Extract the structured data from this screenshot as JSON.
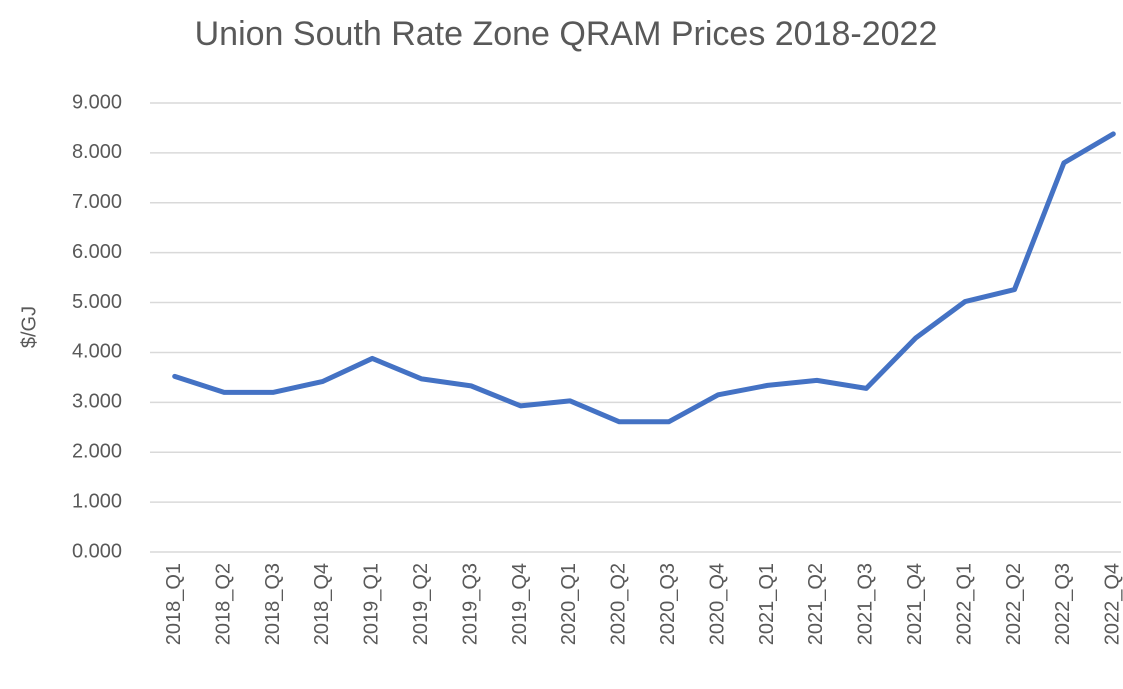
{
  "chart_data": {
    "type": "line",
    "title": "Union South Rate Zone QRAM Prices 2018-2022",
    "y_label": "$/GJ",
    "categories": [
      "2018_Q1",
      "2018_Q2",
      "2018_Q3",
      "2018_Q4",
      "2019_Q1",
      "2019_Q2",
      "2019_Q3",
      "2019_Q4",
      "2020_Q1",
      "2020_Q2",
      "2020_Q3",
      "2020_Q4",
      "2021_Q1",
      "2021_Q2",
      "2021_Q3",
      "2021_Q4",
      "2022_Q1",
      "2022_Q2",
      "2022_Q3",
      "2022_Q4"
    ],
    "series": [
      {
        "name": "Union South",
        "color": "#4472c4",
        "values": [
          3.52,
          3.2,
          3.2,
          3.42,
          3.88,
          3.47,
          3.33,
          2.93,
          3.03,
          2.61,
          2.61,
          3.15,
          3.34,
          3.44,
          3.28,
          4.29,
          5.02,
          5.26,
          7.8,
          8.38
        ]
      }
    ],
    "ylim": [
      0,
      9
    ],
    "yticks": [
      {
        "value": 0,
        "label": "0.000"
      },
      {
        "value": 1,
        "label": "1.000"
      },
      {
        "value": 2,
        "label": "2.000"
      },
      {
        "value": 3,
        "label": "3.000"
      },
      {
        "value": 4,
        "label": "4.000"
      },
      {
        "value": 5,
        "label": "5.000"
      },
      {
        "value": 6,
        "label": "6.000"
      },
      {
        "value": 7,
        "label": "7.000"
      },
      {
        "value": 8,
        "label": "8.000"
      },
      {
        "value": 9,
        "label": "9.000"
      }
    ],
    "grid": true
  }
}
